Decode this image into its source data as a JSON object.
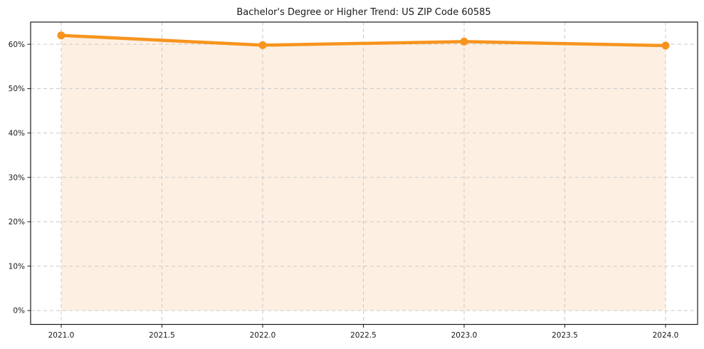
{
  "chart_data": {
    "type": "line",
    "title": "Bachelor's Degree or Higher Trend: US ZIP Code 60585",
    "xlabel": "",
    "ylabel": "",
    "x": [
      2021,
      2022,
      2023,
      2024
    ],
    "values": [
      62.0,
      59.8,
      60.6,
      59.7
    ],
    "x_tick_values": [
      2021.0,
      2021.5,
      2022.0,
      2022.5,
      2023.0,
      2023.5,
      2024.0
    ],
    "x_tick_labels": [
      "2021.0",
      "2021.5",
      "2022.0",
      "2022.5",
      "2023.0",
      "2023.5",
      "2024.0"
    ],
    "y_tick_values": [
      0,
      10,
      20,
      30,
      40,
      50,
      60
    ],
    "y_tick_labels": [
      "0%",
      "10%",
      "20%",
      "30%",
      "40%",
      "50%",
      "60%"
    ],
    "xlim": [
      2020.848,
      2024.159
    ],
    "ylim": [
      -3.13,
      65.0
    ],
    "grid": true,
    "grid_style": "dashed",
    "legend": false,
    "area_fill": true,
    "fill_baseline": 0,
    "marker": "circle",
    "colors": {
      "line": "#f7941e",
      "marker": "#f7941e",
      "fill": "#fdf0e3",
      "grid": "#c9c9c9",
      "spine": "#1a1a1a",
      "text": "#1a1a1a",
      "background": "#ffffff"
    }
  }
}
